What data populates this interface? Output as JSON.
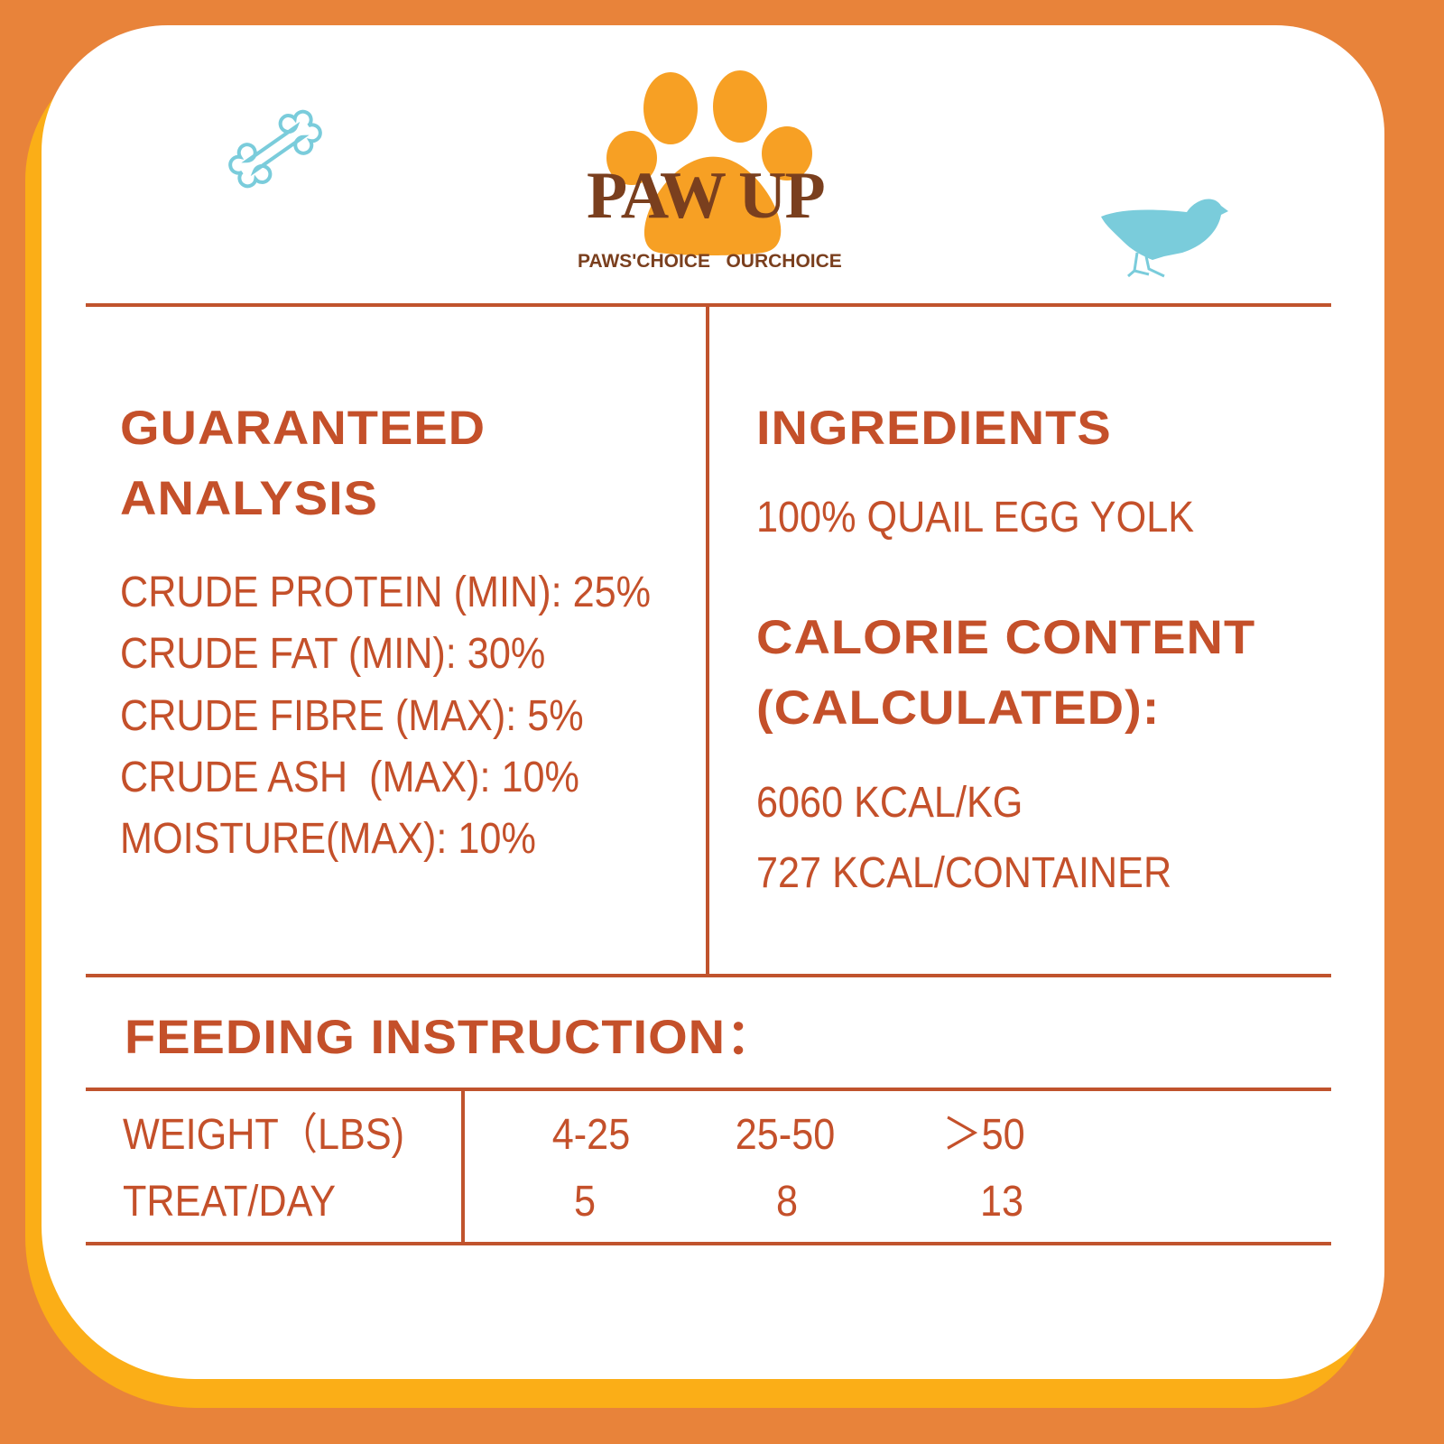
{
  "brand": {
    "logo_text": "PAW UP",
    "tagline": "PAWS'CHOICE   OURCHOICE",
    "paw_color": "#F7A024",
    "text_color": "#7A3F1E"
  },
  "colors": {
    "background": "#E8833A",
    "accent_border": "#FBAE17",
    "text": "#C4502A",
    "icon": "#7ACCDB"
  },
  "icons": [
    "bone-icon",
    "quail-bird-icon",
    "paw-logo-icon"
  ],
  "analysis": {
    "title_line1": "GUARANTEED",
    "title_line2": "ANALYSIS",
    "items": [
      "CRUDE PROTEIN (MIN): 25%",
      "CRUDE FAT (MIN): 30%",
      "CRUDE FIBRE (MAX): 5%",
      "CRUDE ASH  (MAX): 10%",
      "MOISTURE(MAX): 10%"
    ]
  },
  "ingredients": {
    "title": "INGREDIENTS",
    "text": "100% QUAIL EGG YOLK"
  },
  "calorie": {
    "title_line1": "CALORIE CONTENT",
    "title_line2": "(CALCULATED):",
    "values": [
      "6060 KCAL/KG",
      "727 KCAL/CONTAINER"
    ]
  },
  "feeding": {
    "title": "FEEDING INSTRUCTION：",
    "rows": [
      {
        "label": "WEIGHT（LBS)",
        "values": [
          "4-25",
          "25-50",
          "＞50"
        ]
      },
      {
        "label": "TREAT/DAY",
        "values": [
          "5",
          "8",
          "13"
        ]
      }
    ]
  }
}
